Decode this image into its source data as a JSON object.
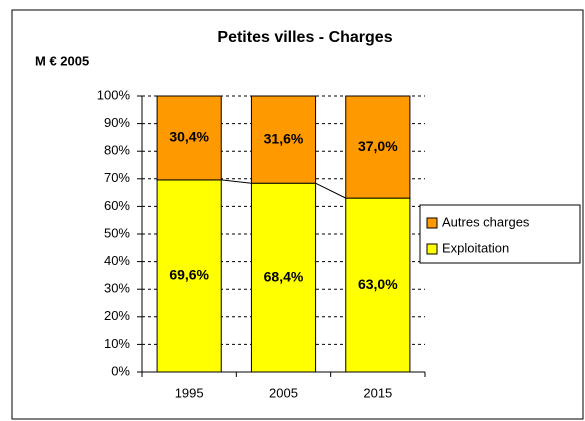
{
  "chart_data": {
    "type": "stacked_bar_100",
    "title": "Petites villes - Charges",
    "y_axis_label": "M € 2005",
    "categories": [
      "1995",
      "2005",
      "2015"
    ],
    "series": [
      {
        "name": "Exploitation",
        "color": "#FFFF00",
        "values": [
          69.6,
          68.4,
          63.0
        ],
        "value_labels": [
          "69,6%",
          "68,4%",
          "63,0%"
        ]
      },
      {
        "name": "Autres charges",
        "color": "#FF9900",
        "values": [
          30.4,
          31.6,
          37.0
        ],
        "value_labels": [
          "30,4%",
          "31,6%",
          "37,0%"
        ]
      }
    ],
    "ylim": [
      0,
      100
    ],
    "yticks": [
      {
        "value": 0,
        "label": "0%"
      },
      {
        "value": 10,
        "label": "10%"
      },
      {
        "value": 20,
        "label": "20%"
      },
      {
        "value": 30,
        "label": "30%"
      },
      {
        "value": 40,
        "label": "40%"
      },
      {
        "value": 50,
        "label": "50%"
      },
      {
        "value": 60,
        "label": "60%"
      },
      {
        "value": 70,
        "label": "70%"
      },
      {
        "value": 80,
        "label": "80%"
      },
      {
        "value": 90,
        "label": "90%"
      },
      {
        "value": 100,
        "label": "100%"
      }
    ],
    "grid": true,
    "legend": "right"
  }
}
